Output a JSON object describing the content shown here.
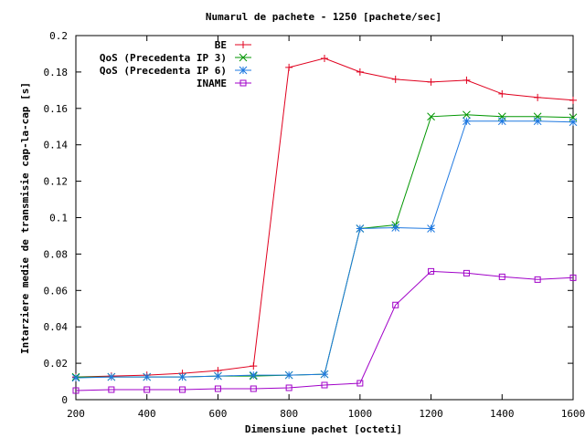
{
  "chart_data": {
    "type": "line",
    "title": "Numarul de pachete - 1250 [pachete/sec]",
    "xlabel": "Dimensiune pachet [octeti]",
    "ylabel": "Intarziere medie de transmisie cap-la-cap [s]",
    "xlim": [
      200,
      1600
    ],
    "ylim": [
      0,
      0.2
    ],
    "x_ticks": [
      200,
      400,
      600,
      800,
      1000,
      1200,
      1400,
      1600
    ],
    "x_tick_labels": [
      "200",
      "400",
      "600",
      "800",
      "1000",
      "1200",
      "1400",
      "1600"
    ],
    "y_ticks": [
      0,
      0.02,
      0.04,
      0.06,
      0.08,
      0.1,
      0.12,
      0.14,
      0.16,
      0.18,
      0.2
    ],
    "y_tick_labels": [
      "0",
      "0.02",
      "0.04",
      "0.06",
      "0.08",
      "0.1",
      "0.12",
      "0.14",
      "0.16",
      "0.18",
      "0.2"
    ],
    "grid": false,
    "legend_position": "top-right",
    "series": [
      {
        "name": "BE",
        "color": "#e0001e",
        "marker": "plus",
        "x": [
          200,
          300,
          400,
          500,
          600,
          700,
          800,
          900,
          1000,
          1100,
          1200,
          1300,
          1400,
          1500,
          1600
        ],
        "y": [
          0.0125,
          0.013,
          0.0135,
          0.0145,
          0.016,
          0.0185,
          0.1825,
          0.1875,
          0.18,
          0.176,
          0.1745,
          0.1755,
          0.168,
          0.166,
          0.1645
        ]
      },
      {
        "name": "QoS (Precedenta IP 3)",
        "color": "#009600",
        "marker": "cross",
        "x": [
          200,
          300,
          400,
          500,
          600,
          700,
          800,
          900,
          1000,
          1100,
          1200,
          1300,
          1400,
          1500,
          1600
        ],
        "y": [
          0.0125,
          0.0125,
          0.0125,
          0.0125,
          0.013,
          0.013,
          0.0135,
          0.014,
          0.094,
          0.096,
          0.1555,
          0.1565,
          0.1555,
          0.1555,
          0.155
        ]
      },
      {
        "name": "QoS (Precedenta IP 6)",
        "color": "#1e78e0",
        "marker": "star",
        "x": [
          200,
          300,
          400,
          500,
          600,
          700,
          800,
          900,
          1000,
          1100,
          1200,
          1300,
          1400,
          1500,
          1600
        ],
        "y": [
          0.012,
          0.0125,
          0.0125,
          0.0125,
          0.013,
          0.0135,
          0.0135,
          0.014,
          0.094,
          0.0945,
          0.094,
          0.153,
          0.153,
          0.153,
          0.1525
        ]
      },
      {
        "name": "INAME",
        "color": "#a000c8",
        "marker": "square",
        "x": [
          200,
          300,
          400,
          500,
          600,
          700,
          800,
          900,
          1000,
          1100,
          1200,
          1300,
          1400,
          1500,
          1600
        ],
        "y": [
          0.005,
          0.0055,
          0.0055,
          0.0055,
          0.006,
          0.006,
          0.0065,
          0.008,
          0.009,
          0.052,
          0.0705,
          0.0695,
          0.0675,
          0.066,
          0.067
        ]
      }
    ]
  }
}
